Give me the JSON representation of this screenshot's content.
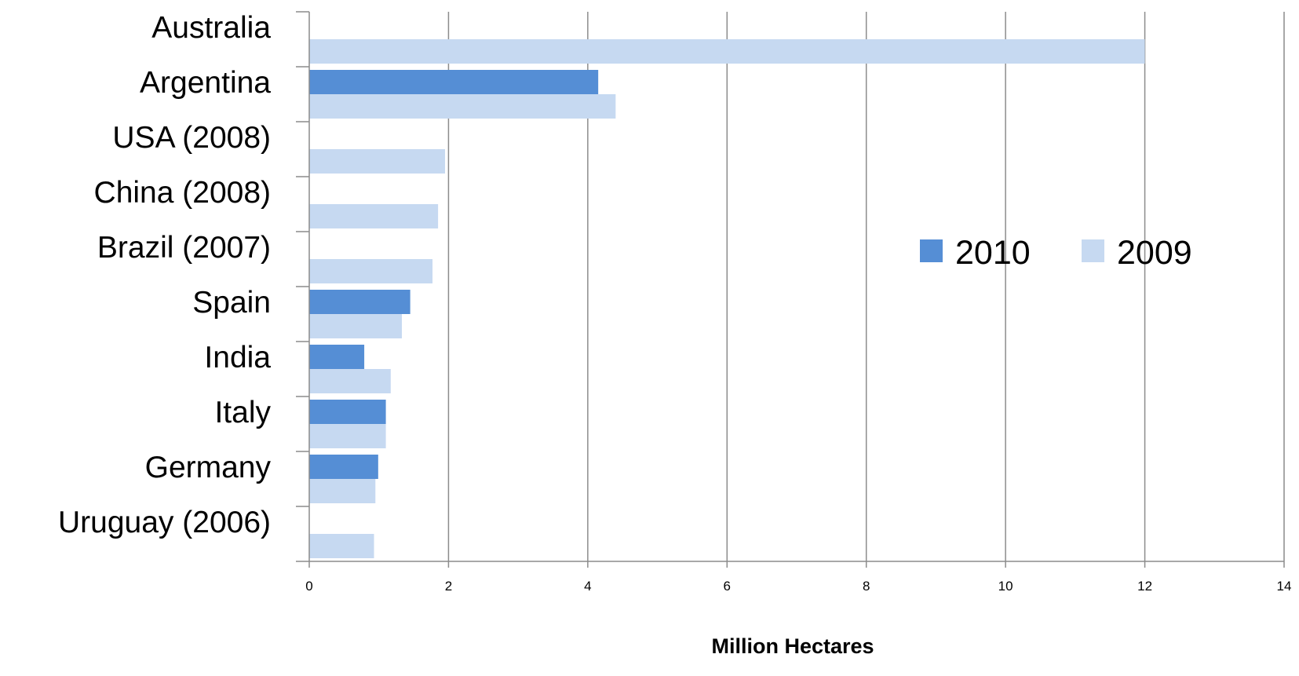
{
  "chart_data": {
    "type": "bar",
    "orientation": "horizontal",
    "categories": [
      "Australia",
      "Argentina",
      "USA (2008)",
      "China (2008)",
      "Brazil (2007)",
      "Spain",
      "India",
      "Italy",
      "Germany",
      "Uruguay (2006)"
    ],
    "series": [
      {
        "name": "2010",
        "color": "#558ed5",
        "values": [
          null,
          4.15,
          null,
          null,
          null,
          1.45,
          0.79,
          1.1,
          0.99,
          null
        ]
      },
      {
        "name": "2009",
        "color": "#c6d9f1",
        "values": [
          12.0,
          4.4,
          1.95,
          1.85,
          1.77,
          1.33,
          1.17,
          1.1,
          0.95,
          0.93
        ]
      }
    ],
    "xlabel": "Million Hectares",
    "ylabel": "",
    "title": "",
    "xlim": [
      0,
      14
    ],
    "xticks": [
      0,
      2,
      4,
      6,
      8,
      10,
      12,
      14
    ],
    "grid": "vertical",
    "legend_position": "right"
  }
}
